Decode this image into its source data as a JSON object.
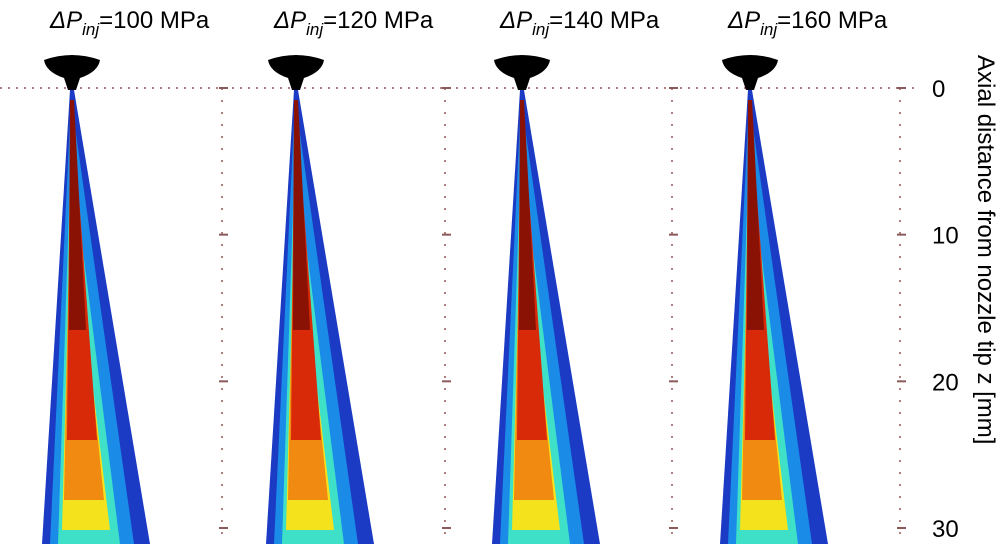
{
  "panels": [
    {
      "symbol": "ΔP",
      "subscript": "inj",
      "value": "=100 MPa"
    },
    {
      "symbol": "ΔP",
      "subscript": "inj",
      "value": "=120 MPa"
    },
    {
      "symbol": "ΔP",
      "subscript": "inj",
      "value": "=140 MPa"
    },
    {
      "symbol": "ΔP",
      "subscript": "inj",
      "value": "=160 MPa"
    }
  ],
  "axis": {
    "label": "Axial distance from nozzle tip z [mm]",
    "ticks": [
      0,
      10,
      20,
      30
    ]
  }
}
